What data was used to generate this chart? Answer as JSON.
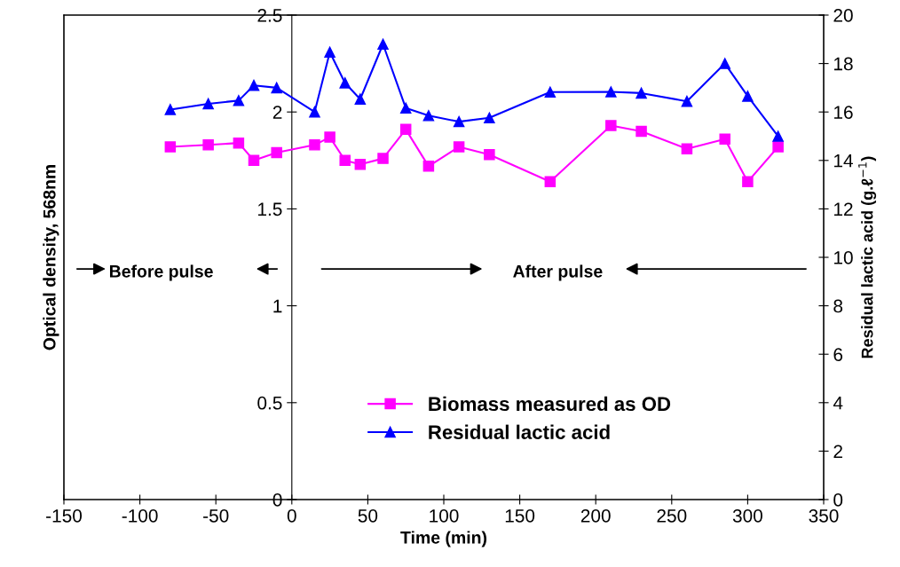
{
  "chart_data": {
    "type": "line",
    "xlabel": "Time (min)",
    "ylabel": "Optical density, 568nm",
    "y2label": "Residual lactic acid (g.ℓ$^{−1}$)",
    "xlim": [
      -150,
      350
    ],
    "xticks": [
      -150,
      -100,
      -50,
      0,
      50,
      100,
      150,
      200,
      250,
      300,
      350
    ],
    "ylim": [
      0,
      2.5
    ],
    "yticks": [
      0,
      0.5,
      1,
      1.5,
      2,
      2.5
    ],
    "y2lim": [
      0,
      20
    ],
    "y2ticks": [
      0,
      2,
      4,
      6,
      8,
      10,
      12,
      14,
      16,
      18,
      20
    ],
    "x": [
      -80,
      -55,
      -35,
      -25,
      -10,
      15,
      25,
      35,
      45,
      60,
      75,
      90,
      110,
      130,
      170,
      210,
      230,
      260,
      285,
      300,
      320
    ],
    "series": [
      {
        "name": "Biomass measured as OD",
        "color": "#ff00ff",
        "marker": "square",
        "values": [
          1.82,
          1.83,
          1.84,
          1.75,
          1.79,
          1.83,
          1.87,
          1.75,
          1.73,
          1.76,
          1.91,
          1.72,
          1.82,
          1.78,
          1.64,
          1.93,
          1.9,
          1.81,
          1.86,
          1.64,
          1.82
        ]
      },
      {
        "name": "Residual lactic acid",
        "color": "#0000ff",
        "marker": "triangle",
        "axis": "y2",
        "values": [
          16.1,
          16.34,
          16.47,
          17.1,
          17.0,
          16.0,
          18.47,
          17.2,
          16.53,
          18.8,
          16.16,
          15.85,
          15.6,
          15.76,
          16.82,
          16.83,
          16.78,
          16.44,
          18.0,
          16.65,
          15.0
        ]
      }
    ],
    "annotations": [
      "Before pulse",
      "After pulse"
    ],
    "grid": false,
    "legend": "bottom",
    "line_style": "solid"
  }
}
